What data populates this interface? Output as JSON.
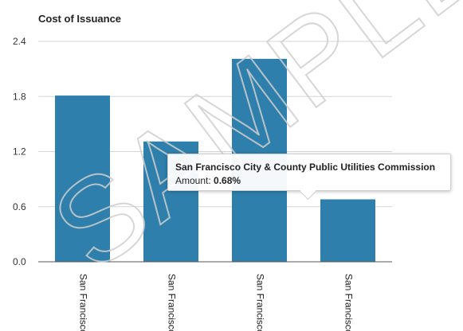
{
  "chart_data": {
    "type": "bar",
    "title": "Cost of Issuance",
    "categories": [
      "San Francisco",
      "San Francisco",
      "San Francisco",
      "San Francisco"
    ],
    "values": [
      1.81,
      1.31,
      2.21,
      0.68
    ],
    "yticks": [
      "0.0",
      "0.6",
      "1.2",
      "1.8",
      "2.4"
    ],
    "ylim": [
      0,
      2.4
    ],
    "grid": true,
    "bar_color": "#2e7fab"
  },
  "tooltip": {
    "title": "San Francisco City & County Public Utilities Commission",
    "value_label": "Amount: ",
    "value": "0.68%"
  },
  "watermark": "SAMPLE"
}
